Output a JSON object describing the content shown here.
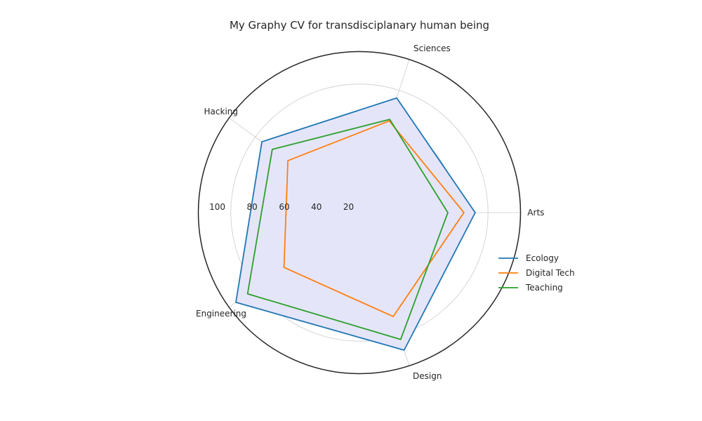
{
  "chart_data": {
    "type": "radar",
    "title": "My Graphy CV for transdisciplanary human being",
    "axes": [
      "Arts",
      "Sciences",
      "Hacking",
      "Engineering",
      "Design"
    ],
    "rlim": [
      0,
      100
    ],
    "rticks": [
      20,
      40,
      60,
      80,
      100
    ],
    "rtick_labels": [
      "20",
      "40",
      "60",
      "80",
      "100"
    ],
    "grid": true,
    "legend_position": "right",
    "series": [
      {
        "name": "Ecology",
        "values": [
          72,
          75,
          75,
          95,
          90
        ],
        "color": "#1f77b4"
      },
      {
        "name": "Digital Tech",
        "values": [
          65,
          60,
          55,
          58,
          68
        ],
        "color": "#ff7f0e"
      },
      {
        "name": "Teaching",
        "values": [
          55,
          61,
          67,
          86,
          83
        ],
        "color": "#2ca02c"
      }
    ],
    "fill_color": "#e5e5fa"
  }
}
